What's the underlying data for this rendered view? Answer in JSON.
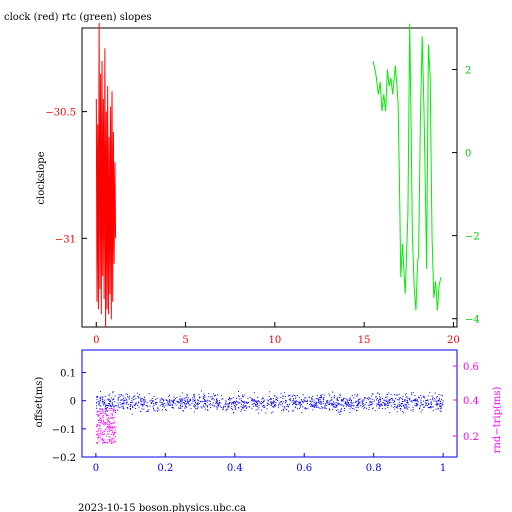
{
  "chart_data": [
    {
      "type": "line",
      "title": "clock (red) rtc (green) slopes",
      "ylabel": "clockslope",
      "xlim": [
        -0.8,
        20.2
      ],
      "xticks": [
        0,
        5,
        10,
        15,
        20
      ],
      "ylim_left": [
        -31.35,
        -30.17
      ],
      "yticks_left": [
        -30.5,
        -31
      ],
      "ylim_right": [
        -4.2,
        3
      ],
      "yticks_right": [
        2,
        0,
        -2,
        -4
      ],
      "colors": {
        "clock": "#ff0000",
        "rtc": "#00ee00",
        "axis": "#000000",
        "xticks": "#ff0000",
        "right_ticks": "#00cc00"
      },
      "series": [
        {
          "axis": "left",
          "color": "#ff0000",
          "x": [
            0.0,
            0.04,
            0.08,
            0.12,
            0.16,
            0.2,
            0.24,
            0.28,
            0.32,
            0.36,
            0.4,
            0.44,
            0.48,
            0.52,
            0.56,
            0.6,
            0.64,
            0.68,
            0.72,
            0.76,
            0.8,
            0.84,
            0.88,
            0.92,
            0.96,
            1.0,
            1.04,
            1.08
          ],
          "y": [
            -30.45,
            -31.25,
            -30.55,
            -31.28,
            -30.15,
            -31.2,
            -30.35,
            -31.3,
            -30.3,
            -31.15,
            -30.45,
            -31.24,
            -30.25,
            -31.35,
            -30.5,
            -31.28,
            -30.4,
            -31.3,
            -30.6,
            -31.22,
            -30.48,
            -31.32,
            -30.42,
            -31.25,
            -30.58,
            -31.1,
            -30.7,
            -31.0
          ]
        },
        {
          "axis": "right",
          "color": "#00ee00",
          "x": [
            15.5,
            15.65,
            15.8,
            15.9,
            16.0,
            16.1,
            16.2,
            16.3,
            16.4,
            16.5,
            16.6,
            16.75,
            16.9,
            16.97,
            17.05,
            17.15,
            17.3,
            17.45,
            17.55,
            17.62,
            17.7,
            17.8,
            17.9,
            18.0,
            18.05,
            18.15,
            18.25,
            18.35,
            18.45,
            18.5,
            18.6,
            18.7,
            18.8,
            18.9,
            19.0,
            19.1,
            19.2,
            19.3
          ],
          "y": [
            2.2,
            1.9,
            1.4,
            1.7,
            1.0,
            1.4,
            1.0,
            2.0,
            1.6,
            1.8,
            1.4,
            2.1,
            1.2,
            -0.5,
            -3.0,
            -2.2,
            -3.4,
            -1.5,
            3.1,
            1.0,
            -2.0,
            -3.2,
            -3.8,
            -2.6,
            -2.5,
            0.8,
            2.8,
            1.0,
            -1.5,
            -2.8,
            2.6,
            1.8,
            -2.0,
            -3.5,
            -3.1,
            -3.8,
            -3.2,
            -3.0
          ]
        }
      ]
    },
    {
      "type": "scatter",
      "ylabel_left": "offset(ms)",
      "ylabel_right": "rnd−trip(ms)",
      "xlim": [
        -0.04,
        1.04
      ],
      "xticks": [
        0,
        0.2,
        0.4,
        0.6,
        0.8,
        1
      ],
      "ylim_left": [
        -0.2,
        0.18
      ],
      "yticks_left": [
        0.1,
        0,
        -0.1,
        -0.2
      ],
      "yticks_right": [
        0.6,
        0.4,
        0.2
      ],
      "colors": {
        "offset": "#0000ff",
        "roundtrip": "#ff00ff",
        "frame": "#0000ff"
      },
      "series": [
        {
          "name": "offset",
          "color": "#0000ff",
          "axis": "left",
          "x_range": [
            0.0,
            1.0
          ],
          "y_center": -0.005,
          "y_spread": 0.03
        },
        {
          "name": "round-trip",
          "color": "#ff00ff",
          "axis": "right",
          "x_range": [
            0.0,
            0.055
          ],
          "y_center": 0.18,
          "y_spread": 0.05
        }
      ]
    }
  ],
  "footer": "2023-10-15 boson.physics.ubc.ca"
}
